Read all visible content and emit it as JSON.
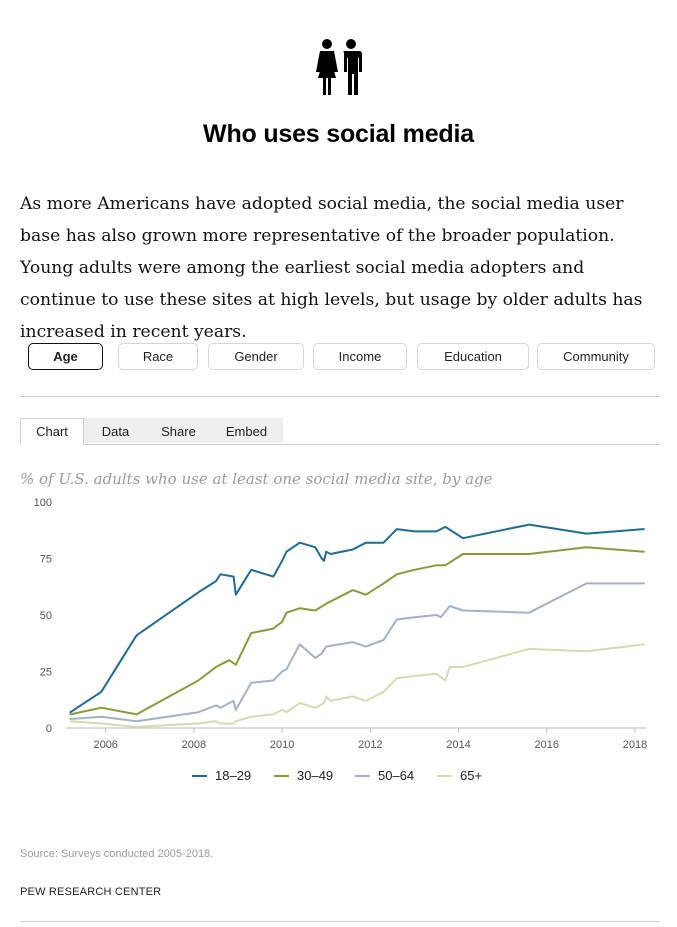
{
  "header": {
    "title": "Who uses social media",
    "icon": "man-woman-icon"
  },
  "intro": {
    "text": "As more Americans have adopted social media, the social media user base has also grown more representative of the broader population. Young adults were among the earliest social media adopters and continue to use these sites at high levels, but usage by older adults has increased in recent years."
  },
  "filters": {
    "items": [
      {
        "label": "Age",
        "active": true
      },
      {
        "label": "Race",
        "active": false
      },
      {
        "label": "Gender",
        "active": false
      },
      {
        "label": "Income",
        "active": false
      },
      {
        "label": "Education",
        "active": false
      },
      {
        "label": "Community",
        "active": false
      }
    ]
  },
  "tabs": {
    "items": [
      {
        "label": "Chart",
        "active": true
      },
      {
        "label": "Data",
        "active": false
      },
      {
        "label": "Share",
        "active": false
      },
      {
        "label": "Embed",
        "active": false
      }
    ]
  },
  "chart_data": {
    "type": "line",
    "title": "% of U.S. adults who use at least one social media site, by age",
    "xlabel": "",
    "ylabel": "",
    "xlim": [
      2005.1,
      2018.25
    ],
    "ylim": [
      0,
      100
    ],
    "yticks": [
      0,
      25,
      50,
      75,
      100
    ],
    "xticks": [
      2006,
      2008,
      2010,
      2012,
      2014,
      2016,
      2018
    ],
    "grid": false,
    "legend_position": "bottom",
    "series": [
      {
        "name": "18–29",
        "color": "#1f6b92",
        "points": [
          [
            2005.2,
            7
          ],
          [
            2005.9,
            16
          ],
          [
            2006.7,
            41
          ],
          [
            2008.1,
            60
          ],
          [
            2008.5,
            65
          ],
          [
            2008.6,
            68
          ],
          [
            2008.9,
            67
          ],
          [
            2008.95,
            59
          ],
          [
            2009.3,
            70
          ],
          [
            2009.8,
            67
          ],
          [
            2010.0,
            74
          ],
          [
            2010.1,
            78
          ],
          [
            2010.4,
            82
          ],
          [
            2010.75,
            80
          ],
          [
            2010.9,
            75
          ],
          [
            2010.95,
            74
          ],
          [
            2011.0,
            78
          ],
          [
            2011.1,
            77
          ],
          [
            2011.6,
            79
          ],
          [
            2011.9,
            82
          ],
          [
            2012.3,
            82
          ],
          [
            2012.6,
            88
          ],
          [
            2013.0,
            87
          ],
          [
            2013.5,
            87
          ],
          [
            2013.7,
            89
          ],
          [
            2014.1,
            84
          ],
          [
            2015.6,
            90
          ],
          [
            2016.9,
            86
          ],
          [
            2018.2,
            88
          ]
        ]
      },
      {
        "name": "30–49",
        "color": "#8a9a3a",
        "points": [
          [
            2005.2,
            6
          ],
          [
            2005.9,
            9
          ],
          [
            2006.7,
            6
          ],
          [
            2008.1,
            21
          ],
          [
            2008.5,
            27
          ],
          [
            2008.8,
            30
          ],
          [
            2008.95,
            28
          ],
          [
            2009.3,
            42
          ],
          [
            2009.8,
            44
          ],
          [
            2010.0,
            47
          ],
          [
            2010.1,
            51
          ],
          [
            2010.4,
            53
          ],
          [
            2010.75,
            52
          ],
          [
            2011.0,
            55
          ],
          [
            2011.6,
            61
          ],
          [
            2011.9,
            59
          ],
          [
            2012.3,
            64
          ],
          [
            2012.6,
            68
          ],
          [
            2013.0,
            70
          ],
          [
            2013.5,
            72
          ],
          [
            2013.7,
            72
          ],
          [
            2014.1,
            77
          ],
          [
            2015.6,
            77
          ],
          [
            2016.9,
            80
          ],
          [
            2018.2,
            78
          ]
        ]
      },
      {
        "name": "50–64",
        "color": "#a3b1c8",
        "points": [
          [
            2005.2,
            4
          ],
          [
            2005.9,
            5
          ],
          [
            2006.7,
            3
          ],
          [
            2008.1,
            7
          ],
          [
            2008.5,
            10
          ],
          [
            2008.6,
            9
          ],
          [
            2008.9,
            12
          ],
          [
            2008.95,
            8
          ],
          [
            2009.3,
            20
          ],
          [
            2009.8,
            21
          ],
          [
            2010.0,
            25
          ],
          [
            2010.1,
            26
          ],
          [
            2010.4,
            37
          ],
          [
            2010.75,
            31
          ],
          [
            2010.9,
            33
          ],
          [
            2011.0,
            36
          ],
          [
            2011.6,
            38
          ],
          [
            2011.9,
            36
          ],
          [
            2012.3,
            39
          ],
          [
            2012.6,
            48
          ],
          [
            2013.0,
            49
          ],
          [
            2013.5,
            50
          ],
          [
            2013.6,
            49
          ],
          [
            2013.8,
            54
          ],
          [
            2014.1,
            52
          ],
          [
            2015.6,
            51
          ],
          [
            2016.9,
            64
          ],
          [
            2018.2,
            64
          ]
        ]
      },
      {
        "name": "65+",
        "color": "#d5dbb0",
        "points": [
          [
            2005.2,
            3
          ],
          [
            2005.9,
            2
          ],
          [
            2006.7,
            0.5
          ],
          [
            2008.1,
            2
          ],
          [
            2008.5,
            3
          ],
          [
            2008.6,
            2
          ],
          [
            2008.9,
            2
          ],
          [
            2008.95,
            3
          ],
          [
            2009.3,
            5
          ],
          [
            2009.8,
            6
          ],
          [
            2010.0,
            8
          ],
          [
            2010.1,
            7
          ],
          [
            2010.4,
            11
          ],
          [
            2010.75,
            9
          ],
          [
            2010.95,
            11
          ],
          [
            2011.0,
            14
          ],
          [
            2011.1,
            12
          ],
          [
            2011.6,
            14
          ],
          [
            2011.9,
            12
          ],
          [
            2012.3,
            16
          ],
          [
            2012.6,
            22
          ],
          [
            2013.0,
            23
          ],
          [
            2013.5,
            24
          ],
          [
            2013.7,
            21
          ],
          [
            2013.8,
            27
          ],
          [
            2014.1,
            27
          ],
          [
            2015.6,
            35
          ],
          [
            2016.9,
            34
          ],
          [
            2018.2,
            37
          ]
        ]
      }
    ]
  },
  "footer": {
    "source": "Source: Surveys conducted 2005-2018.",
    "org": "PEW RESEARCH CENTER"
  }
}
